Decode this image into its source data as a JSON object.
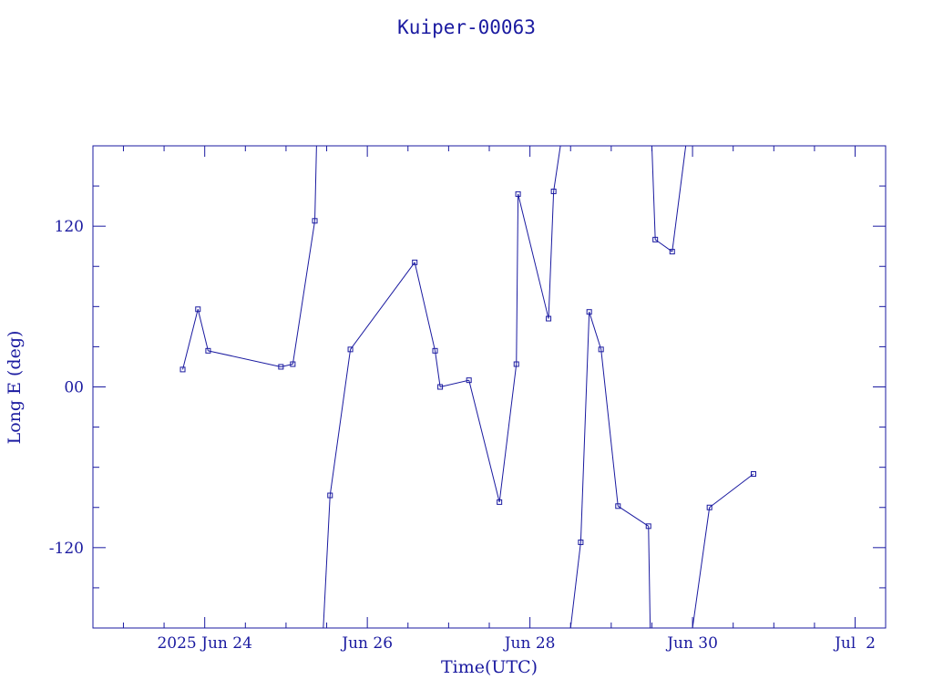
{
  "chart_data": {
    "type": "line",
    "title": "Kuiper-00063",
    "xlabel": "Time(UTC)",
    "ylabel": "Long E (deg)",
    "x_tick_labels": [
      "2025 Jun 24",
      "Jun 26",
      "Jun 28",
      "Jun 30",
      "Jul  2"
    ],
    "y_tick_labels": [
      "-120",
      "00",
      "120"
    ],
    "color": "#1a1aa0",
    "series": [
      {
        "points": [
          [
            "2025-06-23 17:30",
            13
          ],
          [
            "2025-06-23 22:00",
            58
          ],
          [
            "2025-06-24 01:00",
            27
          ],
          [
            "2025-06-24 22:30",
            15
          ],
          [
            "2025-06-25 02:00",
            17
          ],
          [
            "2025-06-25 08:30",
            124
          ],
          [
            "2025-06-25 09:00",
            180
          ],
          [
            "2025-06-25 11:00",
            -180
          ],
          [
            "2025-06-25 13:00",
            -81
          ],
          [
            "2025-06-25 19:00",
            28
          ],
          [
            "2025-06-26 14:00",
            93
          ],
          [
            "2025-06-26 20:00",
            27
          ],
          [
            "2025-06-26 21:30",
            0
          ],
          [
            "2025-06-27 06:00",
            5
          ],
          [
            "2025-06-27 15:00",
            -86
          ],
          [
            "2025-06-27 20:00",
            17
          ],
          [
            "2025-06-27 20:30",
            144
          ],
          [
            "2025-06-28 05:30",
            51
          ],
          [
            "2025-06-28 07:00",
            146
          ],
          [
            "2025-06-28 09:00",
            180
          ],
          [
            "2025-06-28 12:00",
            -180
          ],
          [
            "2025-06-28 15:00",
            -116
          ],
          [
            "2025-06-28 17:30",
            56
          ],
          [
            "2025-06-28 21:00",
            28
          ],
          [
            "2025-06-29 02:00",
            -89
          ],
          [
            "2025-06-29 11:00",
            -104
          ],
          [
            "2025-06-29 11:30",
            -180
          ],
          [
            "2025-06-29 12:00",
            180
          ],
          [
            "2025-06-29 13:00",
            110
          ],
          [
            "2025-06-29 18:00",
            101
          ],
          [
            "2025-06-29 22:00",
            180
          ],
          [
            "2025-06-30 00:00",
            -180
          ],
          [
            "2025-06-30 05:00",
            -90
          ],
          [
            "2025-06-30 18:00",
            -65
          ]
        ]
      }
    ],
    "xlim": [
      "2025-06-22 15:00",
      "2025-07-02 09:00"
    ],
    "ylim": [
      -180,
      180
    ],
    "y_ticks_major": [
      -120,
      0,
      120
    ],
    "y_tick_step_minor": 30,
    "x_tick_step_minor_hours": 12,
    "grid": false
  }
}
